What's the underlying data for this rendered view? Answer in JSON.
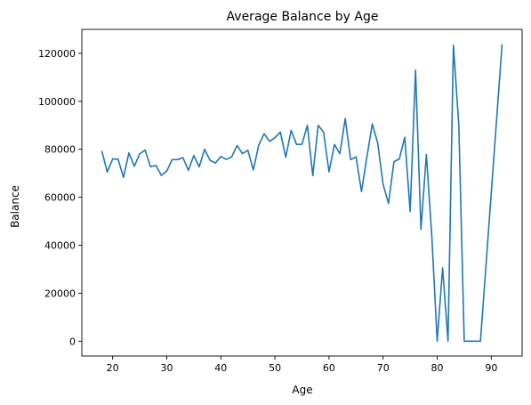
{
  "chart_data": {
    "type": "line",
    "title": "Average Balance by Age",
    "xlabel": "Age",
    "ylabel": "Balance",
    "xlim": [
      14.3,
      95.7
    ],
    "ylim": [
      -6200,
      130000
    ],
    "xticks": [
      20,
      30,
      40,
      50,
      60,
      70,
      80,
      90
    ],
    "yticks": [
      0,
      20000,
      40000,
      60000,
      80000,
      100000,
      120000
    ],
    "grid": false,
    "line_color": "#1f77b4",
    "series": [
      {
        "x": [
          18,
          19,
          20,
          21,
          22,
          23,
          24,
          25,
          26,
          27,
          28,
          29,
          30,
          31,
          32,
          33,
          34,
          35,
          36,
          37,
          38,
          39,
          40,
          41,
          42,
          43,
          44,
          45,
          46,
          47,
          48,
          49,
          50,
          51,
          52,
          53,
          54,
          55,
          56,
          57,
          58,
          59,
          60,
          61,
          62,
          63,
          64,
          65,
          66,
          67,
          68,
          69,
          70,
          71,
          72,
          73,
          74,
          75,
          76,
          77,
          78,
          79,
          80,
          81,
          82,
          83,
          84,
          85,
          86,
          87,
          88,
          92
        ],
        "y": [
          79300,
          70500,
          76000,
          75900,
          68300,
          78500,
          72900,
          78100,
          79700,
          72700,
          73300,
          69100,
          70900,
          75700,
          75700,
          76500,
          71200,
          77400,
          72700,
          80000,
          75400,
          74300,
          77000,
          75800,
          76800,
          81600,
          78200,
          79600,
          71400,
          81700,
          86500,
          83300,
          84800,
          87200,
          76700,
          87900,
          82000,
          82100,
          90000,
          69000,
          90000,
          87100,
          70600,
          82000,
          78200,
          92800,
          75700,
          76800,
          62400,
          76700,
          90600,
          82600,
          65400,
          57400,
          74800,
          76000,
          85000,
          54100,
          113000,
          46600,
          77800,
          44000,
          0,
          30500,
          0,
          123400,
          90000,
          0,
          0,
          0,
          0,
          123800
        ]
      }
    ]
  }
}
